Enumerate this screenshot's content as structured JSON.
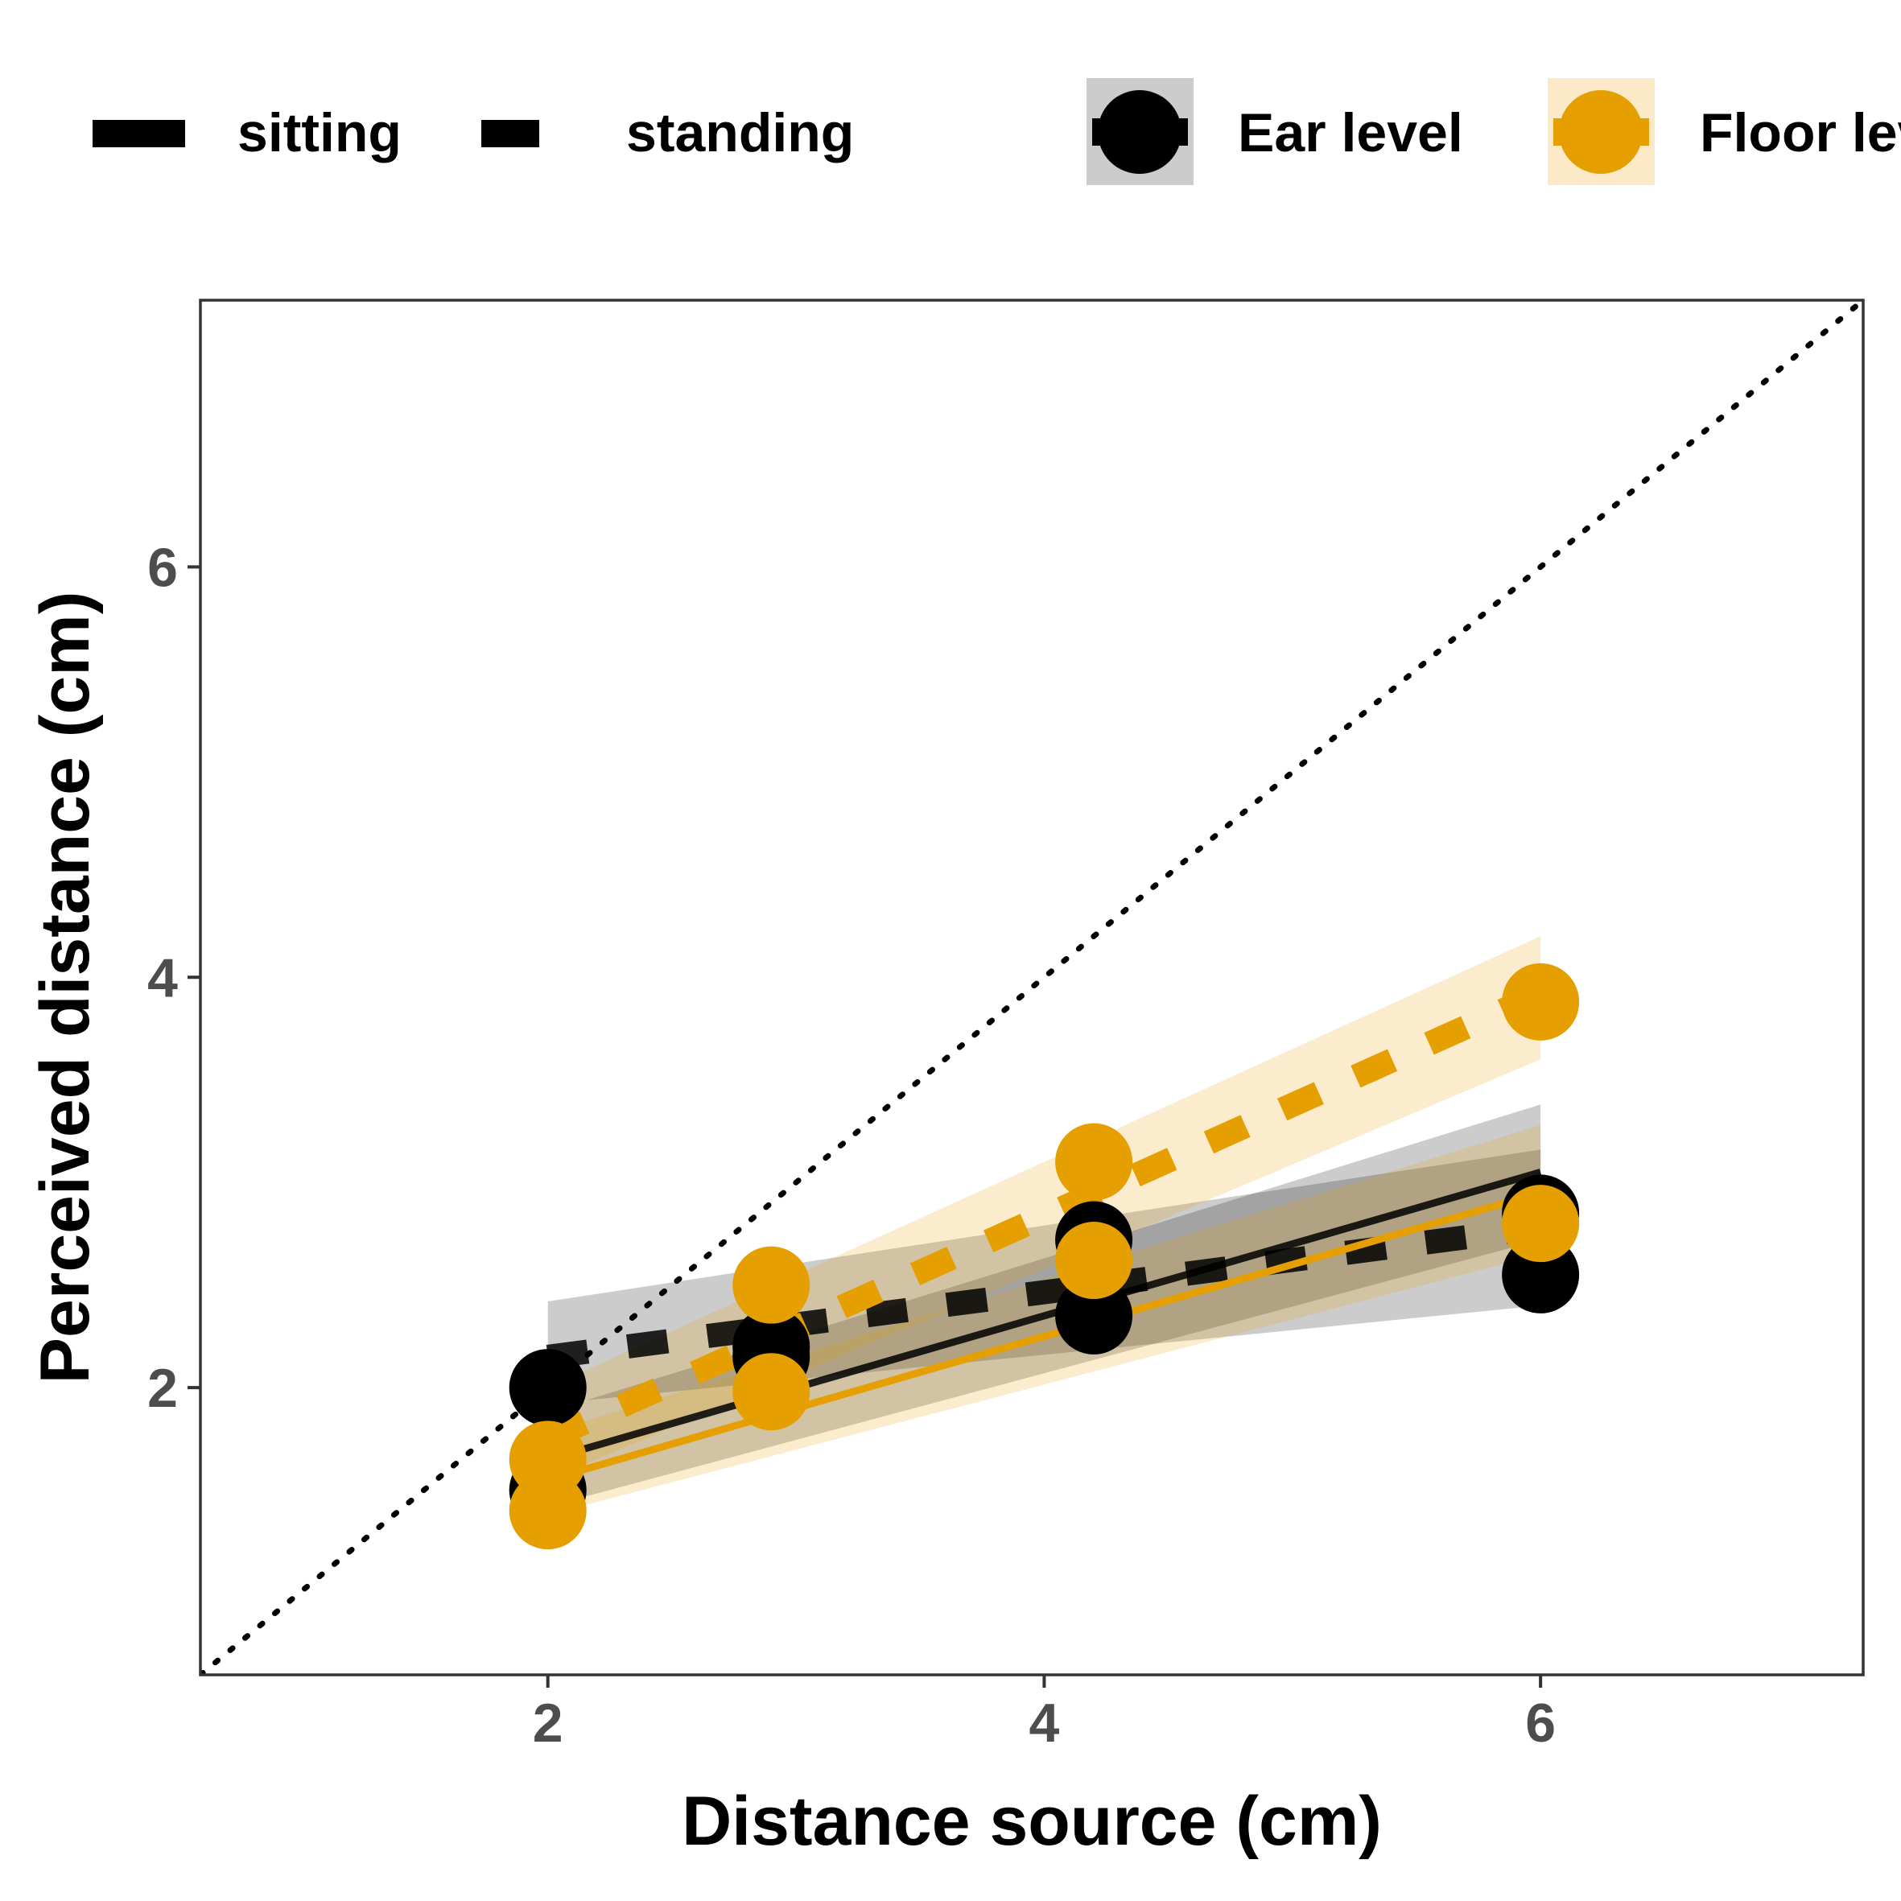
{
  "chart_data": {
    "type": "scatter",
    "title": "",
    "xlabel": "Distance source (cm)",
    "ylabel": "Perceived distance (cm)",
    "xlim": [
      0.6,
      7.3
    ],
    "ylim": [
      0.6,
      7.3
    ],
    "xticks": [
      2,
      4,
      6
    ],
    "yticks": [
      2,
      4,
      6
    ],
    "grid": false,
    "reference_line": {
      "type": "identity",
      "style": "dotted"
    },
    "legend": {
      "position": "top",
      "linetype_items": [
        {
          "label": "sitting",
          "style": "solid"
        },
        {
          "label": "standing",
          "style": "dashed"
        }
      ],
      "color_items": [
        {
          "label": "Ear level",
          "color": "#000000",
          "fill": "#cccccc"
        },
        {
          "label": "Floor level",
          "color": "#E69F00",
          "fill": "#fbe9c8"
        }
      ]
    },
    "series": [
      {
        "level": "Ear level",
        "posture": "sitting",
        "color": "#000000",
        "linetype": "solid",
        "x": [
          2,
          2.9,
          4.2,
          6
        ],
        "y": [
          1.5,
          2.15,
          2.35,
          2.85
        ],
        "fit": {
          "x": [
            2,
            6
          ],
          "y": [
            1.65,
            3.05
          ]
        },
        "band_low": [
          1.42,
          2.72
        ],
        "band_high": [
          1.88,
          3.38
        ]
      },
      {
        "level": "Ear level",
        "posture": "standing",
        "color": "#000000",
        "linetype": "dashed",
        "x": [
          2,
          2.9,
          4.2,
          6
        ],
        "y": [
          2.0,
          2.2,
          2.72,
          2.55
        ],
        "fit": {
          "x": [
            2,
            6
          ],
          "y": [
            2.15,
            2.78
          ]
        },
        "band_low": [
          1.92,
          2.4
        ],
        "band_high": [
          2.42,
          3.16
        ]
      },
      {
        "level": "Floor level",
        "posture": "sitting",
        "color": "#E69F00",
        "linetype": "solid",
        "x": [
          2,
          2.9,
          4.2,
          6
        ],
        "y": [
          1.65,
          1.98,
          2.62,
          2.8
        ],
        "fit": {
          "x": [
            2,
            6
          ],
          "y": [
            1.55,
            2.95
          ]
        },
        "band_low": [
          1.38,
          2.65
        ],
        "band_high": [
          1.78,
          3.28
        ]
      },
      {
        "level": "Floor level",
        "posture": "standing",
        "color": "#E69F00",
        "linetype": "dashed",
        "x": [
          2,
          2.9,
          4.2,
          6
        ],
        "y": [
          1.4,
          2.5,
          3.1,
          3.88
        ],
        "fit": {
          "x": [
            2,
            6
          ],
          "y": [
            1.75,
            3.92
          ]
        },
        "band_low": [
          1.55,
          3.6
        ],
        "band_high": [
          2.0,
          4.2
        ]
      }
    ]
  }
}
